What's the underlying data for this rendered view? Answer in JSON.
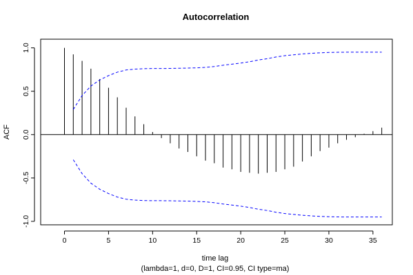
{
  "chart_data": {
    "type": "bar",
    "title": "Autocorrelation",
    "xlabel": "time lag",
    "ylabel": "ACF",
    "subtitle": "(lambda=1, d=0, D=1, CI=0.95, CI type=ma)",
    "xlim": [
      -2.7,
      37.2
    ],
    "ylim": [
      -1.04,
      1.1
    ],
    "x_ticks": [
      "0",
      "5",
      "10",
      "15",
      "20",
      "25",
      "30",
      "35"
    ],
    "y_ticks": [
      "-1.0",
      "-0.5",
      "0.0",
      "0.5",
      "1.0"
    ],
    "grid": false,
    "zero_line": true,
    "lags": [
      0,
      1,
      2,
      3,
      4,
      5,
      6,
      7,
      8,
      9,
      10,
      11,
      12,
      13,
      14,
      15,
      16,
      17,
      18,
      19,
      20,
      21,
      22,
      23,
      24,
      25,
      26,
      27,
      28,
      29,
      30,
      31,
      32,
      33,
      34,
      35,
      36
    ],
    "acf": [
      1.0,
      0.925,
      0.85,
      0.76,
      0.64,
      0.54,
      0.43,
      0.31,
      0.21,
      0.12,
      0.03,
      -0.04,
      -0.1,
      -0.16,
      -0.2,
      -0.25,
      -0.3,
      -0.33,
      -0.38,
      -0.4,
      -0.43,
      -0.44,
      -0.45,
      -0.44,
      -0.43,
      -0.4,
      -0.37,
      -0.31,
      -0.25,
      -0.19,
      -0.15,
      -0.1,
      -0.06,
      -0.03,
      0.01,
      0.04,
      0.08
    ],
    "ci_band": {
      "name": "CI",
      "color": "#0000ff",
      "lags": [
        1,
        2,
        3,
        4,
        5,
        6,
        7,
        8,
        9,
        10,
        11,
        12,
        13,
        14,
        15,
        16,
        17,
        18,
        19,
        20,
        21,
        22,
        23,
        24,
        25,
        26,
        27,
        28,
        29,
        30,
        31,
        32,
        33,
        34,
        35,
        36
      ],
      "upper": [
        0.29,
        0.45,
        0.56,
        0.63,
        0.68,
        0.72,
        0.745,
        0.755,
        0.76,
        0.762,
        0.762,
        0.763,
        0.765,
        0.767,
        0.77,
        0.775,
        0.785,
        0.8,
        0.812,
        0.825,
        0.84,
        0.86,
        0.875,
        0.895,
        0.91,
        0.92,
        0.93,
        0.937,
        0.943,
        0.947,
        0.949,
        0.95,
        0.95,
        0.95,
        0.95,
        0.95
      ]
    },
    "bar_color": "#000000"
  }
}
